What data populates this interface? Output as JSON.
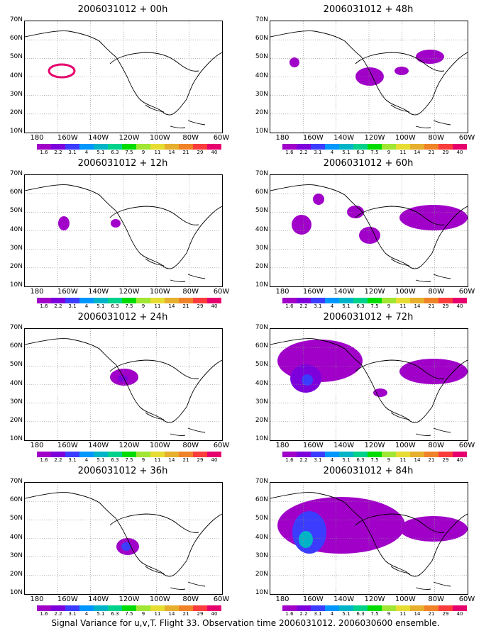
{
  "panels": [
    {
      "title": "2006031012 + 00h",
      "col": 0,
      "row": 0
    },
    {
      "title": "2006031012 + 12h",
      "col": 0,
      "row": 1
    },
    {
      "title": "2006031012 + 24h",
      "col": 0,
      "row": 2
    },
    {
      "title": "2006031012 + 36h",
      "col": 0,
      "row": 3
    },
    {
      "title": "2006031012 + 48h",
      "col": 1,
      "row": 0
    },
    {
      "title": "2006031012 + 60h",
      "col": 1,
      "row": 1
    },
    {
      "title": "2006031012 + 72h",
      "col": 1,
      "row": 2
    },
    {
      "title": "2006031012 + 84h",
      "col": 1,
      "row": 3
    }
  ],
  "axes": {
    "lat_labels": [
      "70N",
      "60N",
      "50N",
      "40N",
      "30N",
      "20N",
      "10N"
    ],
    "lon_labels": [
      "180",
      "160W",
      "140W",
      "120W",
      "100W",
      "80W",
      "60W"
    ]
  },
  "colorbar": {
    "labels": [
      "1.6",
      "2.2",
      "3.1",
      "4",
      "5.1",
      "6.3",
      "7.5",
      "9",
      "11",
      "14",
      "21",
      "29",
      "40"
    ],
    "colors": [
      "#a000c8",
      "#7d00dc",
      "#3c3cff",
      "#0096ff",
      "#00b4c8",
      "#00d28c",
      "#00dc00",
      "#a0e632",
      "#e6dc32",
      "#e6af2d",
      "#f08228",
      "#fa3c3c",
      "#e6006e"
    ]
  },
  "caption": "Signal Variance for u,v,T. Flight 33. Observation time 2006031012. 2006030600 ensemble."
}
